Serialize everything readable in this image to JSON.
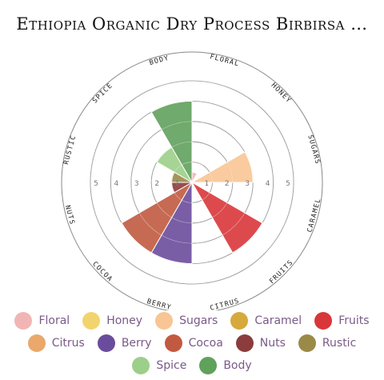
{
  "chart_data": {
    "type": "radial-bar",
    "title": "Ethiopia Organic Dry Process Birbirsa …",
    "scale_ticks": [
      "1",
      "2",
      "3",
      "4",
      "5"
    ],
    "rmax": 5,
    "categories": [
      {
        "name": "Floral",
        "label": "FLORAL",
        "value": 0.5,
        "color": "#f2b5b5"
      },
      {
        "name": "Honey",
        "label": "HONEY",
        "value": 0,
        "color": "#f2d46e"
      },
      {
        "name": "Sugars",
        "label": "SUGARS",
        "value": 3,
        "color": "#f8c594"
      },
      {
        "name": "Caramel",
        "label": "CARAMEL",
        "value": 0,
        "color": "#d6a93c"
      },
      {
        "name": "Fruits",
        "label": "FRUITS",
        "value": 4,
        "color": "#d9363a"
      },
      {
        "name": "Citrus",
        "label": "CITRUS",
        "value": 0,
        "color": "#eaa86a"
      },
      {
        "name": "Berry",
        "label": "BERRY",
        "value": 4,
        "color": "#6a4c9c"
      },
      {
        "name": "Cocoa",
        "label": "COCOA",
        "value": 4,
        "color": "#c15a40"
      },
      {
        "name": "Nuts",
        "label": "NUTS",
        "value": 1,
        "color": "#8c3c3c"
      },
      {
        "name": "Rustic",
        "label": "RUSTIC",
        "value": 1,
        "color": "#9a8a48"
      },
      {
        "name": "Spice",
        "label": "SPICE",
        "value": 2,
        "color": "#9ccf8a"
      },
      {
        "name": "Body",
        "label": "BODY",
        "value": 4,
        "color": "#60a15c"
      }
    ]
  }
}
